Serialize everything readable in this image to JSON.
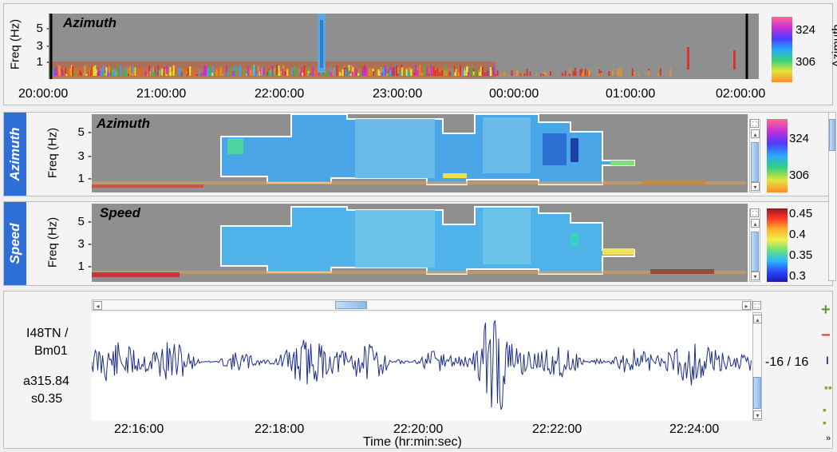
{
  "colors": {
    "accent": "#2d6fd6",
    "waveform": "#1c2e8c",
    "panel_bg": "#8f8f8f"
  },
  "overview": {
    "title": "Azimuth",
    "ylabel": "Freq (Hz)",
    "yticks": [
      "5 -",
      "3 -",
      "1 -"
    ],
    "xticks": [
      "20:00:00",
      "21:00:00",
      "22:00:00",
      "23:00:00",
      "00:00:00",
      "01:00:00",
      "02:00:00"
    ],
    "colorbar": {
      "label": "Azimuth",
      "ticks": [
        "324",
        "306"
      ]
    }
  },
  "azimuth_panel": {
    "tab": "Azimuth",
    "title": "Azimuth",
    "ylabel": "Freq (Hz)",
    "yticks": [
      "5 -",
      "3 -",
      "1 -"
    ],
    "colorbar_ticks": [
      "324",
      "306"
    ]
  },
  "speed_panel": {
    "tab": "Speed",
    "title": "Speed",
    "ylabel": "Freq (Hz)",
    "yticks": [
      "5 -",
      "3 -",
      "1 -"
    ],
    "colorbar_ticks": [
      "0.45",
      "0.4",
      "0.35",
      "0.3"
    ]
  },
  "waveform": {
    "station": "I48TN /",
    "channel": "Bm01",
    "azimuth_value": "a315.84",
    "speed_value": "s0.35",
    "amplitude": "-16 / 16",
    "xticks": [
      "22:16:00",
      "22:18:00",
      "22:20:00",
      "22:22:00",
      "22:24:00"
    ],
    "xlabel": "Time (hr:min:sec)"
  },
  "toolbar": {
    "zoom_in": "+",
    "zoom_out": "−",
    "scale": "I"
  }
}
